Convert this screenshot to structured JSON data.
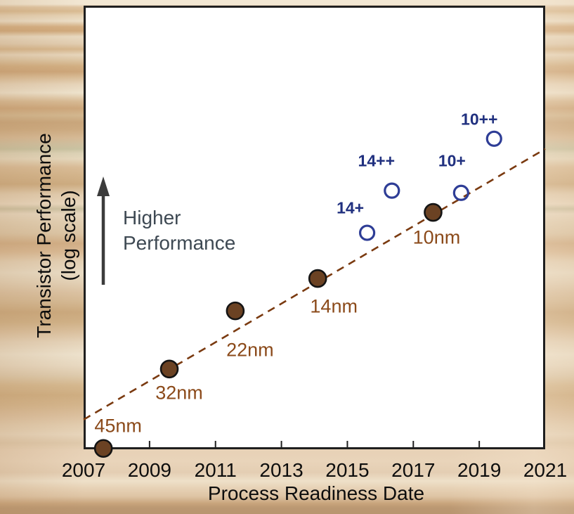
{
  "figure": {
    "x_axis_title": "Process Readiness Date",
    "y_axis_title_line1": "Transistor Performance",
    "y_axis_title_line2": "(log scale)",
    "annotation_line1": "Higher",
    "annotation_line2": "Performance"
  },
  "chart_data": {
    "type": "scatter",
    "title": "",
    "xlabel": "Process Readiness Date",
    "ylabel": "Transistor Performance (log scale)",
    "x_range": [
      2007,
      2021
    ],
    "x_tick_labels": [
      "2007",
      "2009",
      "2011",
      "2013",
      "2015",
      "2017",
      "2019",
      "2021"
    ],
    "x_ticks_with_marks": [
      2009,
      2011,
      2013,
      2015,
      2017,
      2019
    ],
    "y_axis_note": "unlabeled relative performance on log scale; y_frac = fraction of plot height above the x-axis",
    "grid": "off",
    "series": [
      {
        "name": "process-nodes",
        "marker": "filled-circle",
        "marker_color": "#6b4223",
        "label_color": "#8b4a1a",
        "points": [
          {
            "label": "45nm",
            "x": 2007.6,
            "y_frac": 0.002,
            "label_dx": 21,
            "label_dy": -32
          },
          {
            "label": "32nm",
            "x": 2009.6,
            "y_frac": 0.181,
            "label_dx": 14,
            "label_dy": 34
          },
          {
            "label": "22nm",
            "x": 2011.6,
            "y_frac": 0.312,
            "label_dx": 21,
            "label_dy": 56
          },
          {
            "label": "14nm",
            "x": 2014.1,
            "y_frac": 0.385,
            "label_dx": 23,
            "label_dy": 40
          },
          {
            "label": "10nm",
            "x": 2017.6,
            "y_frac": 0.534,
            "label_dx": 5,
            "label_dy": 36
          }
        ]
      },
      {
        "name": "enhanced-node-variants",
        "marker": "open-circle",
        "marker_color": "#2e3d96",
        "label_color": "#20307f",
        "points": [
          {
            "label": "14+",
            "x": 2015.6,
            "y_frac": 0.488,
            "label_dx": -24,
            "label_dy": -35
          },
          {
            "label": "14++",
            "x": 2016.35,
            "y_frac": 0.583,
            "label_dx": -22,
            "label_dy": -42
          },
          {
            "label": "10+",
            "x": 2018.45,
            "y_frac": 0.578,
            "label_dx": -13,
            "label_dy": -45
          },
          {
            "label": "10++",
            "x": 2019.45,
            "y_frac": 0.7,
            "label_dx": -21,
            "label_dy": -27
          }
        ]
      }
    ],
    "trendline": {
      "style": "dashed",
      "color": "#7a3a10",
      "from": {
        "x": 2007.0,
        "y_frac": 0.067
      },
      "to": {
        "x": 2021.0,
        "y_frac": 0.677
      }
    }
  },
  "colors": {
    "plot_background": "#ffffff",
    "axis_border": "#1f1f1f",
    "arrow": "#3c3c3c",
    "annotation_text": "#3e4953",
    "axis_text": "#0d0d0d"
  }
}
